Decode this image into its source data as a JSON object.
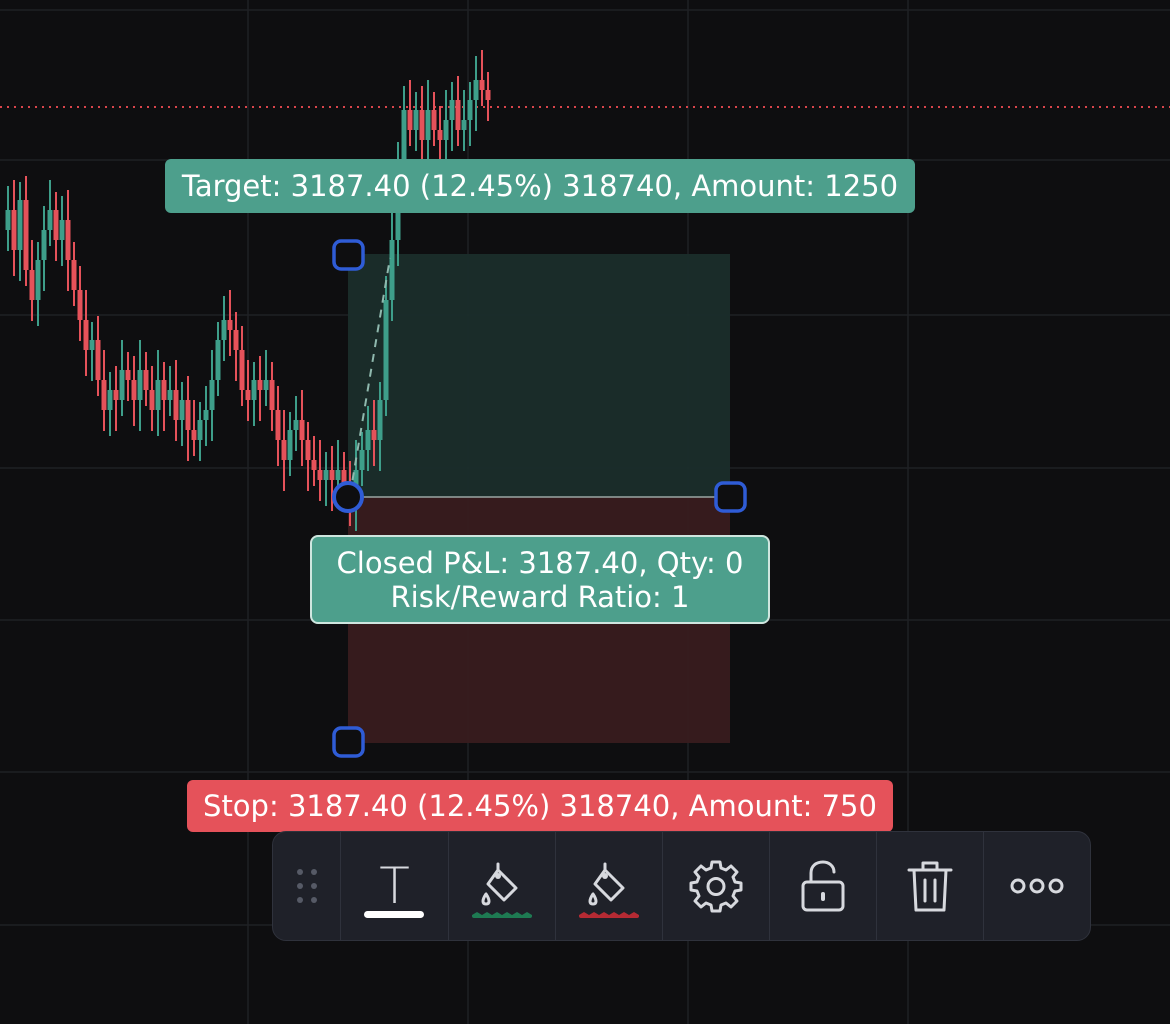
{
  "colors": {
    "background": "#0e0e10",
    "grid": "#1f2024",
    "bull_candle": "#3e9e8a",
    "bear_candle": "#e5525a",
    "profit_zone": "#1b2f2b",
    "loss_zone": "#3a1c1e",
    "label_green": "#4d9f8c",
    "label_red": "#e5525a",
    "handle": "#2f5cd6",
    "price_line": "#d9454c"
  },
  "position_tool": {
    "target_label": "Target: 3187.40 (12.45%) 318740, Amount: 1250",
    "pnl_line1": "Closed P&L: 3187.40, Qty: 0",
    "pnl_line2": "Risk/Reward Ratio: 1",
    "stop_label": "Stop: 3187.40 (12.45%) 318740, Amount: 750"
  },
  "toolbar": {
    "text_button_glyph": "T",
    "items": [
      {
        "name": "drag-handle",
        "icon": "grip-dots-icon"
      },
      {
        "name": "text-button",
        "icon": "text-icon"
      },
      {
        "name": "profit-color-button",
        "icon": "paint-bucket-icon",
        "accent": "#1e7a52"
      },
      {
        "name": "stop-color-button",
        "icon": "paint-bucket-icon",
        "accent": "#b52a33"
      },
      {
        "name": "settings-button",
        "icon": "gear-icon"
      },
      {
        "name": "lock-button",
        "icon": "unlock-icon"
      },
      {
        "name": "delete-button",
        "icon": "trash-icon"
      },
      {
        "name": "more-button",
        "icon": "more-dots-icon"
      }
    ]
  }
}
